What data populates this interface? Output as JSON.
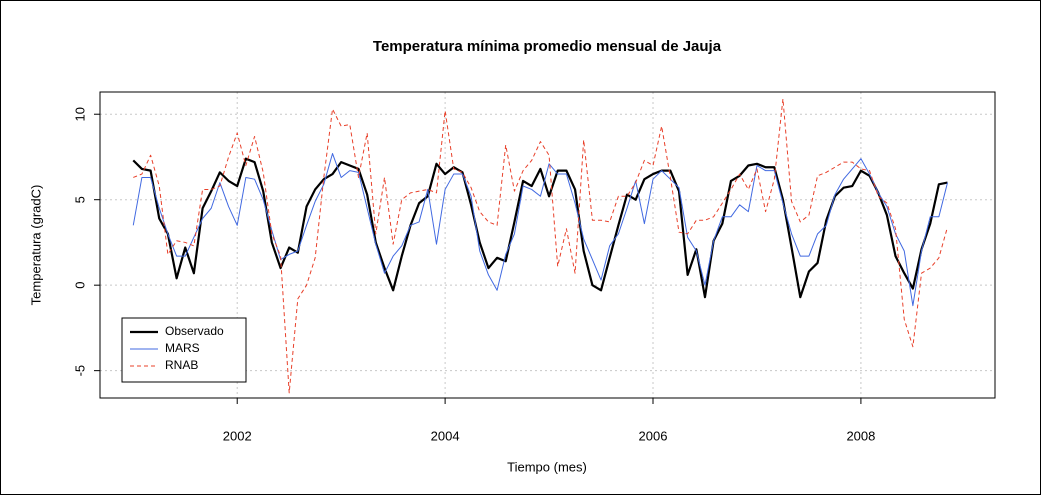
{
  "chart_data": {
    "type": "line",
    "title": "Temperatura mínima promedio mensual de Jauja",
    "x_label": "Tiempo (mes)",
    "y_label": "Temperatura (gradC)",
    "x": [
      2001,
      2001.083,
      2001.167,
      2001.25,
      2001.333,
      2001.417,
      2001.5,
      2001.583,
      2001.667,
      2001.75,
      2001.833,
      2001.917,
      2002,
      2002.083,
      2002.167,
      2002.25,
      2002.333,
      2002.417,
      2002.5,
      2002.583,
      2002.667,
      2002.75,
      2002.833,
      2002.917,
      2003,
      2003.083,
      2003.167,
      2003.25,
      2003.333,
      2003.417,
      2003.5,
      2003.583,
      2003.667,
      2003.75,
      2003.833,
      2003.917,
      2004,
      2004.083,
      2004.167,
      2004.25,
      2004.333,
      2004.417,
      2004.5,
      2004.583,
      2004.667,
      2004.75,
      2004.833,
      2004.917,
      2005,
      2005.083,
      2005.167,
      2005.25,
      2005.333,
      2005.417,
      2005.5,
      2005.583,
      2005.667,
      2005.75,
      2005.833,
      2005.917,
      2006,
      2006.083,
      2006.167,
      2006.25,
      2006.333,
      2006.417,
      2006.5,
      2006.583,
      2006.667,
      2006.75,
      2006.833,
      2006.917,
      2007,
      2007.083,
      2007.167,
      2007.25,
      2007.333,
      2007.417,
      2007.5,
      2007.583,
      2007.667,
      2007.75,
      2007.833,
      2007.917,
      2008,
      2008.083,
      2008.167,
      2008.25,
      2008.333,
      2008.417,
      2008.5,
      2008.583,
      2008.667,
      2008.75,
      2008.833
    ],
    "series": [
      {
        "name": "Observado",
        "color": "#000000",
        "width": 2.2,
        "linestyle": "solid",
        "values": [
          7.3,
          6.8,
          6.7,
          3.9,
          3.0,
          0.4,
          2.2,
          0.7,
          4.5,
          5.5,
          6.6,
          6.1,
          5.8,
          7.4,
          7.2,
          5.5,
          2.5,
          1.0,
          2.2,
          1.9,
          4.6,
          5.6,
          6.2,
          6.5,
          7.2,
          7.0,
          6.8,
          5.3,
          2.5,
          1.0,
          -0.3,
          1.7,
          3.5,
          4.8,
          5.2,
          7.1,
          6.5,
          6.9,
          6.6,
          4.7,
          2.5,
          1.0,
          1.6,
          1.4,
          3.7,
          6.1,
          5.8,
          6.8,
          5.2,
          6.7,
          6.7,
          5.6,
          2.0,
          0.0,
          -0.3,
          1.6,
          3.5,
          5.3,
          5.0,
          6.2,
          6.5,
          6.7,
          6.7,
          5.5,
          0.6,
          2.1,
          -0.7,
          2.6,
          3.6,
          6.1,
          6.4,
          7.0,
          7.1,
          6.9,
          6.9,
          5.0,
          2.2,
          -0.7,
          0.8,
          1.3,
          3.8,
          5.2,
          5.7,
          5.8,
          6.7,
          6.4,
          5.4,
          4.1,
          1.7,
          0.7,
          -0.2,
          2.1,
          3.6,
          5.9,
          6.0
        ]
      },
      {
        "name": "MARS",
        "color": "#4169e1",
        "width": 1,
        "linestyle": "solid",
        "values": [
          3.5,
          6.3,
          6.3,
          4.5,
          3.0,
          1.7,
          1.7,
          2.8,
          3.9,
          4.5,
          6.0,
          4.6,
          3.5,
          6.3,
          6.2,
          5.0,
          3.2,
          1.5,
          1.8,
          2.0,
          3.5,
          4.9,
          5.9,
          7.7,
          6.3,
          6.7,
          6.6,
          4.5,
          2.4,
          0.7,
          1.7,
          2.3,
          3.5,
          3.7,
          5.6,
          2.4,
          5.6,
          6.5,
          6.5,
          5.2,
          2.0,
          0.6,
          -0.3,
          1.8,
          3.0,
          5.8,
          5.6,
          5.2,
          7.1,
          6.5,
          6.5,
          4.8,
          2.7,
          1.5,
          0.3,
          2.3,
          3.0,
          4.5,
          6.1,
          3.6,
          6.2,
          6.7,
          6.2,
          5.7,
          2.8,
          2.0,
          0.0,
          2.6,
          4.0,
          4.0,
          4.7,
          4.3,
          7.0,
          6.7,
          6.7,
          4.8,
          3.0,
          1.7,
          1.7,
          3.0,
          3.5,
          5.3,
          6.2,
          6.8,
          7.4,
          6.5,
          5.4,
          4.6,
          3.0,
          2.0,
          -1.2,
          2.0,
          4.0,
          4.0,
          6.0
        ]
      },
      {
        "name": "RNAB",
        "color": "#e8402a",
        "width": 1,
        "linestyle": "dashed",
        "values": [
          6.3,
          6.5,
          7.6,
          5.8,
          1.8,
          2.6,
          2.5,
          2.3,
          5.6,
          5.6,
          5.8,
          7.5,
          8.9,
          7.0,
          8.7,
          6.6,
          3.0,
          1.7,
          -6.3,
          -0.8,
          0.0,
          1.6,
          6.3,
          10.3,
          9.3,
          9.4,
          6.3,
          8.9,
          3.0,
          6.3,
          2.4,
          5.0,
          5.4,
          5.5,
          5.6,
          5.4,
          10.2,
          6.8,
          6.6,
          5.7,
          4.3,
          3.7,
          3.5,
          8.2,
          5.5,
          6.7,
          7.3,
          8.4,
          7.6,
          1.1,
          3.3,
          0.7,
          8.5,
          3.8,
          3.8,
          3.7,
          5.2,
          5.2,
          6.0,
          7.3,
          7.0,
          9.3,
          6.3,
          3.1,
          3.0,
          3.8,
          3.8,
          4.0,
          4.8,
          5.6,
          6.5,
          5.6,
          6.8,
          4.3,
          6.2,
          10.9,
          4.9,
          3.7,
          4.1,
          6.4,
          6.6,
          6.9,
          7.2,
          7.2,
          6.8,
          6.7,
          5.2,
          4.8,
          3.3,
          -2.0,
          -3.6,
          0.7,
          1.0,
          1.6,
          3.4
        ]
      }
    ],
    "xlim": [
      2000.68,
      2009.29
    ],
    "ylim": [
      -6.6,
      11.3
    ],
    "xticks": [
      2002,
      2004,
      2006,
      2008
    ],
    "yticks": [
      -5,
      0,
      5,
      10
    ],
    "grid": true,
    "legend": "bottomleft"
  }
}
